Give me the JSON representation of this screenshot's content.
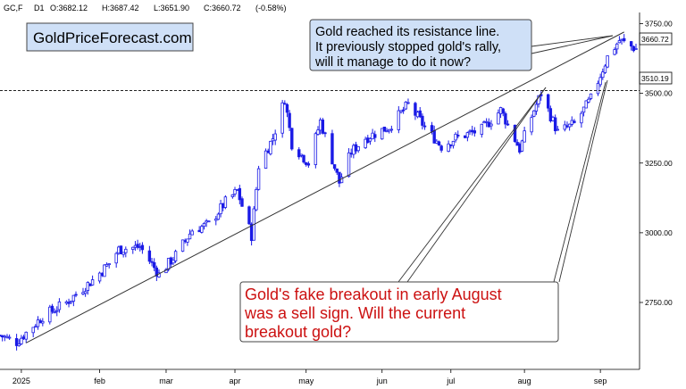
{
  "header": {
    "symbol": "GC,F",
    "timeframe": "D1",
    "open": "O:3682.12",
    "high": "H:3687.42",
    "low": "L:3651.90",
    "close": "C:3660.72",
    "change": "(-0.58%)"
  },
  "watermark": "GoldPriceForecast.com",
  "annotations": {
    "top_lines": [
      "Gold reached its resistance line.",
      "It previously stopped gold's rally,",
      "will it manage to do it now?"
    ],
    "bottom_lines": [
      "Gold's fake breakout in early August",
      "was a sell sign. Will the current",
      "breakout gold?"
    ]
  },
  "price_tags": {
    "last": "3660.72",
    "level": "3510.19"
  },
  "colors": {
    "candle": "#1a1ae6",
    "text_red": "#cc1111",
    "box_blue": "#cfe0f7",
    "line": "#333333"
  },
  "chart_data": {
    "type": "candlestick",
    "ylim": [
      2510,
      3790
    ],
    "y_ticks": [
      2750,
      3000,
      3250,
      3500,
      3750
    ],
    "y_tick_labels": [
      "2750.00",
      "3000.00",
      "3250.00",
      "3500.00",
      "3750.00"
    ],
    "x_tick_labels": [
      "2025",
      "feb",
      "mar",
      "apr",
      "may",
      "jun",
      "jul",
      "aug",
      "sep"
    ],
    "x_tick_dates": [
      "2025-01-01",
      "2025-02-03",
      "2025-03-03",
      "2025-04-01",
      "2025-05-01",
      "2025-06-02",
      "2025-07-01",
      "2025-08-01",
      "2025-09-02"
    ],
    "date_range": [
      "2024-12-23",
      "2025-09-17"
    ],
    "horizontal_level": 3510.19,
    "trendline": [
      [
        "2025-01-03",
        2605
      ],
      [
        "2025-09-12",
        3720
      ]
    ],
    "close_path": [
      [
        "2024-12-23",
        2632
      ],
      [
        "2024-12-30",
        2608
      ],
      [
        "2025-01-10",
        2700
      ],
      [
        "2025-01-20",
        2750
      ],
      [
        "2025-01-31",
        2830
      ],
      [
        "2025-02-07",
        2890
      ],
      [
        "2025-02-11",
        2940
      ],
      [
        "2025-02-20",
        2950
      ],
      [
        "2025-02-28",
        2850
      ],
      [
        "2025-03-07",
        2920
      ],
      [
        "2025-03-14",
        3010
      ],
      [
        "2025-03-21",
        3030
      ],
      [
        "2025-03-28",
        3110
      ],
      [
        "2025-04-02",
        3150
      ],
      [
        "2025-04-08",
        2990
      ],
      [
        "2025-04-11",
        3240
      ],
      [
        "2025-04-17",
        3340
      ],
      [
        "2025-04-22",
        3480
      ],
      [
        "2025-04-25",
        3320
      ],
      [
        "2025-05-02",
        3250
      ],
      [
        "2025-05-07",
        3400
      ],
      [
        "2025-05-15",
        3180
      ],
      [
        "2025-05-20",
        3290
      ],
      [
        "2025-05-26",
        3340
      ],
      [
        "2025-06-05",
        3380
      ],
      [
        "2025-06-13",
        3460
      ],
      [
        "2025-06-20",
        3380
      ],
      [
        "2025-06-27",
        3310
      ],
      [
        "2025-07-03",
        3340
      ],
      [
        "2025-07-14",
        3370
      ],
      [
        "2025-07-22",
        3440
      ],
      [
        "2025-07-30",
        3300
      ],
      [
        "2025-08-05",
        3440
      ],
      [
        "2025-08-08",
        3500
      ],
      [
        "2025-08-15",
        3360
      ],
      [
        "2025-08-22",
        3390
      ],
      [
        "2025-08-29",
        3480
      ],
      [
        "2025-09-05",
        3630
      ],
      [
        "2025-09-10",
        3690
      ],
      [
        "2025-09-17",
        3660
      ]
    ]
  }
}
